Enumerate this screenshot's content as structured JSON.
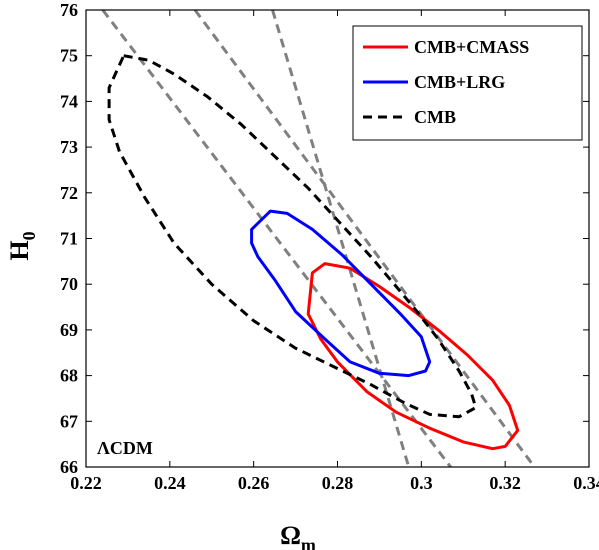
{
  "chart_data": {
    "type": "line",
    "xlabel": "Ω",
    "xlabel_sub": "m",
    "ylabel": "H",
    "ylabel_sub": "0",
    "xlim": [
      0.22,
      0.34
    ],
    "ylim": [
      66,
      76
    ],
    "xticks": [
      0.22,
      0.24,
      0.26,
      0.28,
      0.3,
      0.32,
      0.34
    ],
    "xtick_labels": [
      "0.22",
      "0.24",
      "0.26",
      "0.28",
      "0.3",
      "0.32",
      "0.34"
    ],
    "yticks": [
      66,
      67,
      68,
      69,
      70,
      71,
      72,
      73,
      74,
      75,
      76
    ],
    "ytick_labels": [
      "66",
      "67",
      "68",
      "69",
      "70",
      "71",
      "72",
      "73",
      "74",
      "75",
      "76"
    ],
    "grid": false,
    "legend_position": "top-right",
    "annotation": "ΛCDM",
    "series": [
      {
        "name": "CMB+CMASS",
        "color": "#ff0000",
        "style": "solid",
        "closed": true,
        "x": [
          0.274,
          0.277,
          0.283,
          0.29,
          0.297,
          0.304,
          0.311,
          0.317,
          0.321,
          0.323,
          0.32,
          0.317,
          0.31,
          0.302,
          0.294,
          0.287,
          0.28,
          0.276,
          0.273,
          0.2735,
          0.274
        ],
        "y": [
          70.25,
          70.45,
          70.35,
          69.95,
          69.5,
          69.0,
          68.45,
          67.9,
          67.35,
          66.8,
          66.45,
          66.4,
          66.55,
          66.85,
          67.2,
          67.65,
          68.3,
          68.8,
          69.35,
          69.8,
          70.25
        ]
      },
      {
        "name": "CMB+LRG",
        "color": "#0000ff",
        "style": "solid",
        "closed": true,
        "x": [
          0.264,
          0.268,
          0.274,
          0.281,
          0.288,
          0.295,
          0.3,
          0.302,
          0.301,
          0.297,
          0.29,
          0.283,
          0.277,
          0.27,
          0.265,
          0.261,
          0.2595,
          0.2595,
          0.264
        ],
        "y": [
          71.6,
          71.55,
          71.2,
          70.65,
          70.0,
          69.35,
          68.85,
          68.3,
          68.1,
          68.0,
          68.05,
          68.3,
          68.8,
          69.4,
          70.1,
          70.6,
          70.9,
          71.2,
          71.6
        ]
      },
      {
        "name": "CMB",
        "color": "#000000",
        "style": "dashed",
        "closed": true,
        "x": [
          0.229,
          0.235,
          0.241,
          0.249,
          0.257,
          0.265,
          0.273,
          0.281,
          0.288,
          0.294,
          0.299,
          0.304,
          0.309,
          0.312,
          0.313,
          0.309,
          0.302,
          0.296,
          0.288,
          0.279,
          0.27,
          0.26,
          0.25,
          0.241,
          0.234,
          0.228,
          0.2255,
          0.2255,
          0.229
        ],
        "y": [
          75.0,
          74.9,
          74.6,
          74.1,
          73.5,
          72.8,
          72.1,
          71.3,
          70.6,
          69.95,
          69.4,
          68.8,
          68.1,
          67.6,
          67.3,
          67.1,
          67.15,
          67.4,
          67.8,
          68.2,
          68.6,
          69.2,
          70.0,
          70.9,
          71.9,
          72.9,
          73.6,
          74.3,
          75.0
        ]
      }
    ],
    "reference_lines": [
      {
        "color": "#808080",
        "style": "dashed",
        "x": [
          0.224,
          0.307
        ],
        "y": [
          76,
          66
        ]
      },
      {
        "color": "#808080",
        "style": "dashed",
        "x": [
          0.246,
          0.327
        ],
        "y": [
          76,
          66
        ]
      },
      {
        "color": "#808080",
        "style": "dashed",
        "x": [
          0.2645,
          0.297
        ],
        "y": [
          76,
          66
        ]
      }
    ]
  }
}
